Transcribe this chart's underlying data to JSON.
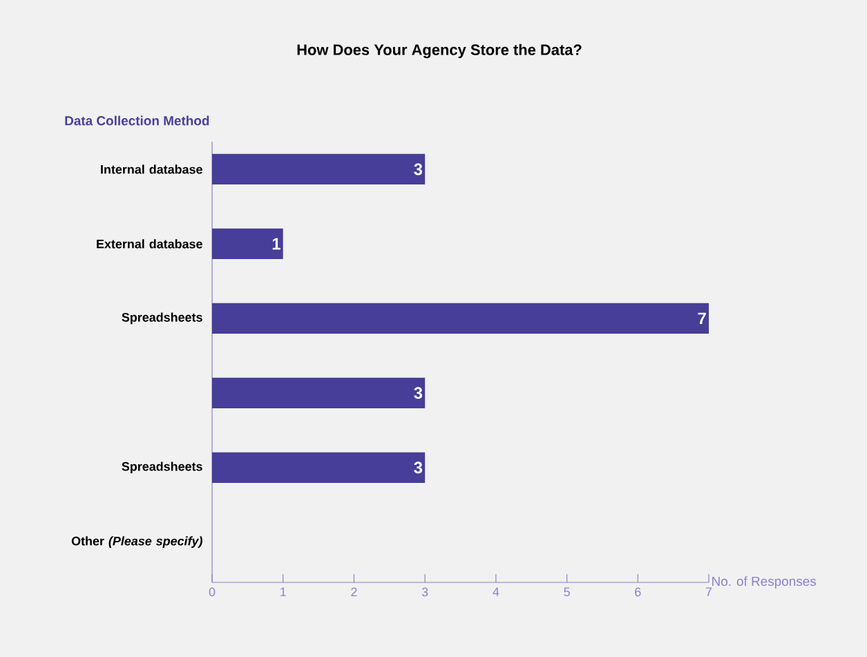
{
  "chart_data": {
    "type": "bar",
    "orientation": "horizontal",
    "title": "How Does Your Agency Store the Data?",
    "ylabel": "Data Collection Method",
    "xlabel": "No. of Responses",
    "categories": [
      "Internal database",
      "External database",
      "Spreadsheets",
      null,
      "Spreadsheets",
      "Other *(Please specify)*"
    ],
    "values": [
      3,
      1,
      7,
      3,
      3,
      0
    ],
    "value_labels": [
      "3",
      "1",
      "7",
      "3",
      "3",
      null
    ],
    "color": "#463e98",
    "xlim": [
      0,
      7
    ],
    "xticks": [
      0,
      1,
      2,
      3,
      4,
      5,
      6,
      7
    ],
    "grid": false
  }
}
